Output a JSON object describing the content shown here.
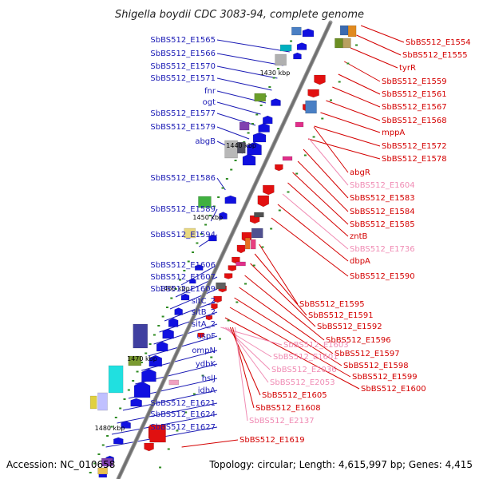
{
  "title": "Shigella boydii CDC 3083-94, complete genome",
  "accession": "Accession: NC_010658",
  "summary": "Topology: circular; Length: 4,615,997 bp; Genes: 4,415",
  "colors": {
    "left_label": "#1b1bb5",
    "right_label": "#d40000",
    "pink_label": "#f08cb4",
    "backbone": "#707070",
    "strand_plus": "#e21010",
    "strand_minus": "#1010e0",
    "tick": "#2e8b22"
  },
  "scale_ticks": [
    "1430 kbp",
    "1440 kbp",
    "1450 kbp",
    "1460 kbp",
    "1470 kbp",
    "1480 kbp"
  ],
  "left_labels": [
    "SbBS512_E1565",
    "SbBS512_E1566",
    "SbBS512_E1570",
    "SbBS512_E1571",
    "fnr",
    "ogt",
    "SbBS512_E1577",
    "SbBS512_E1579",
    "abgB",
    "SbBS512_E1586",
    "SbBS512_E1589",
    "SbBS512_E1594",
    "SbBS512_E1606",
    "SbBS512_E1607",
    "SbBS512_E1609",
    "sitC_2",
    "sitB_2",
    "sitA_2",
    "uspF",
    "ompN",
    "ydbK",
    "hslJ",
    "idhA",
    "SbBS512_E1621",
    "SbBS512_E1624",
    "SbBS512_E1627"
  ],
  "right_labels": [
    "SbBS512_E1554",
    "SbBS512_E1555",
    "tyrR",
    "SbBS512_E1559",
    "SbBS512_E1561",
    "SbBS512_E1567",
    "SbBS512_E1568",
    "mppA",
    "SbBS512_E1572",
    "SbBS512_E1578",
    "abgR",
    "SbBS512_E1604",
    "SbBS512_E1583",
    "SbBS512_E1584",
    "SbBS512_E1585",
    "zntB",
    "SbBS512_E1736",
    "dbpA",
    "SbBS512_E1590",
    "SbBS512_E1595",
    "SbBS512_E1591",
    "SbBS512_E1592",
    "SbBS512_E1596",
    "SbBS512_E1597",
    "SbBS512_E1598",
    "SbBS512_E1599",
    "SbBS512_E1600"
  ],
  "center_labels": [
    "SbBS512_E1603",
    "SbBS512_E1601",
    "SbBS512_E2036",
    "SbBS512_E2053",
    "SbBS512_E1605",
    "SbBS512_E1608",
    "SbBS512_E2137",
    "SbBS512_E1619"
  ]
}
